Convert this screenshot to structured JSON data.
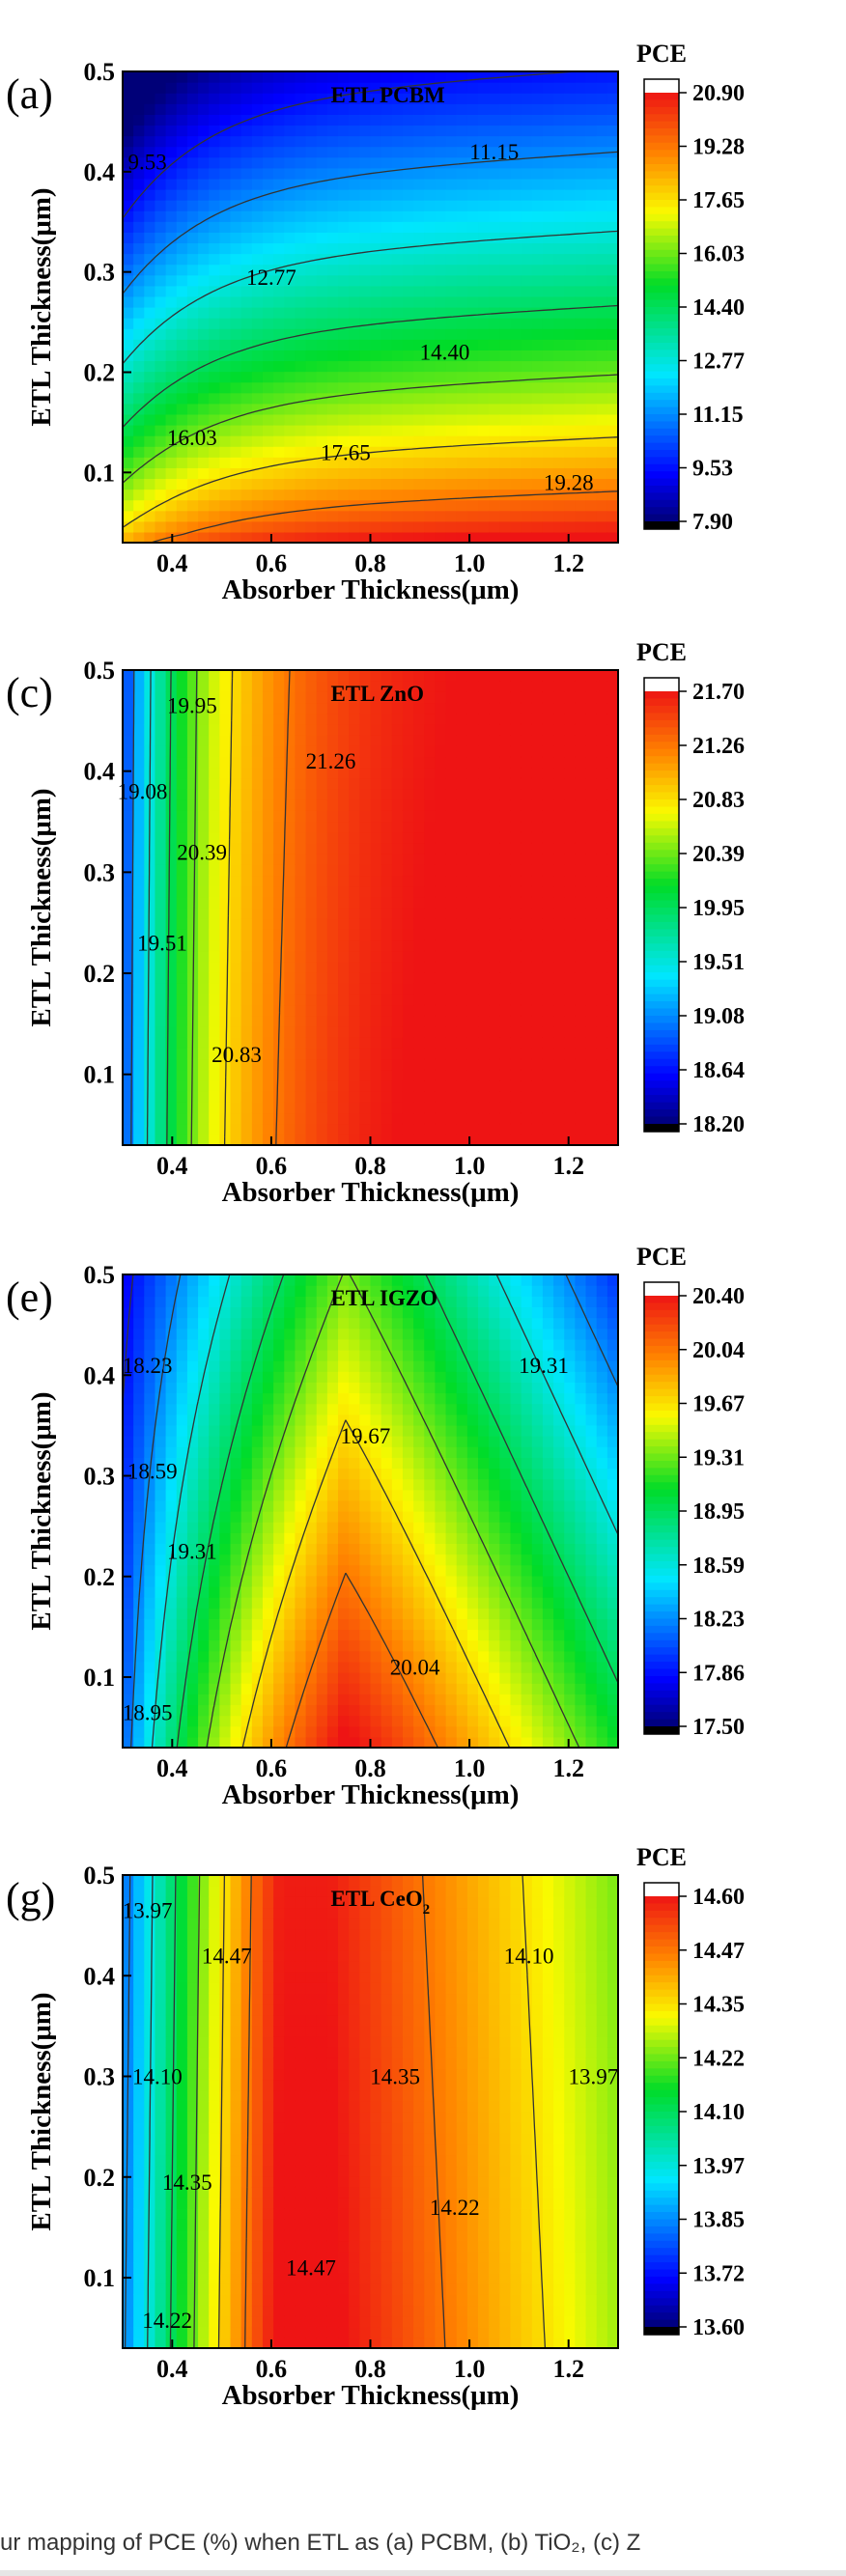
{
  "caption": "ur mapping of PCE (%) when ETL as (a) PCBM, (b) TiO₂, (c) Z",
  "chart_data": [
    {
      "type": "heatmap",
      "panel": "(a)",
      "title": "ETL PCBM",
      "title_sub": "",
      "xlabel": "Absorber Thickness(μm)",
      "ylabel": "ETL Thickness(μm)",
      "colorbar_title": "PCE",
      "xlim": [
        0.3,
        1.3
      ],
      "ylim": [
        0.03,
        0.5
      ],
      "xticks": [
        "0.4",
        "0.6",
        "0.8",
        "1.0",
        "1.2"
      ],
      "yticks": [
        "0.1",
        "0.2",
        "0.3",
        "0.4",
        "0.5"
      ],
      "zlim": [
        7.9,
        20.9
      ],
      "colorbar_ticks": [
        "20.90",
        "19.28",
        "17.65",
        "16.03",
        "14.40",
        "12.77",
        "11.15",
        "9.53",
        "7.90"
      ],
      "contour_labels": [
        {
          "text": "9.53",
          "x": 0.35,
          "y": 0.41
        },
        {
          "text": "11.15",
          "x": 1.05,
          "y": 0.42
        },
        {
          "text": "12.77",
          "x": 0.6,
          "y": 0.295
        },
        {
          "text": "14.40",
          "x": 0.95,
          "y": 0.22
        },
        {
          "text": "16.03",
          "x": 0.44,
          "y": 0.135
        },
        {
          "text": "17.65",
          "x": 0.75,
          "y": 0.12
        },
        {
          "text": "19.28",
          "x": 1.2,
          "y": 0.09
        }
      ]
    },
    {
      "type": "heatmap",
      "panel": "(c)",
      "title": "ETL ZnO",
      "title_sub": "",
      "xlabel": "Absorber Thickness(μm)",
      "ylabel": "ETL Thickness(μm)",
      "colorbar_title": "PCE",
      "xlim": [
        0.3,
        1.3
      ],
      "ylim": [
        0.03,
        0.5
      ],
      "xticks": [
        "0.4",
        "0.6",
        "0.8",
        "1.0",
        "1.2"
      ],
      "yticks": [
        "0.1",
        "0.2",
        "0.3",
        "0.4",
        "0.5"
      ],
      "zlim": [
        18.2,
        21.7
      ],
      "colorbar_ticks": [
        "21.70",
        "21.26",
        "20.83",
        "20.39",
        "19.95",
        "19.51",
        "19.08",
        "18.64",
        "18.20"
      ],
      "contour_labels": [
        {
          "text": "19.95",
          "x": 0.44,
          "y": 0.465
        },
        {
          "text": "21.26",
          "x": 0.72,
          "y": 0.41
        },
        {
          "text": "19.08",
          "x": 0.34,
          "y": 0.38
        },
        {
          "text": "20.39",
          "x": 0.46,
          "y": 0.32
        },
        {
          "text": "19.51",
          "x": 0.38,
          "y": 0.23
        },
        {
          "text": "20.83",
          "x": 0.53,
          "y": 0.12
        }
      ]
    },
    {
      "type": "heatmap",
      "panel": "(e)",
      "title": "ETL IGZO",
      "title_sub": "",
      "xlabel": "Absorber Thickness(μm)",
      "ylabel": "ETL Thickness(μm)",
      "colorbar_title": "PCE",
      "xlim": [
        0.3,
        1.3
      ],
      "ylim": [
        0.03,
        0.5
      ],
      "xticks": [
        "0.4",
        "0.6",
        "0.8",
        "1.0",
        "1.2"
      ],
      "yticks": [
        "0.1",
        "0.2",
        "0.3",
        "0.4",
        "0.5"
      ],
      "zlim": [
        17.5,
        20.4
      ],
      "colorbar_ticks": [
        "20.40",
        "20.04",
        "19.67",
        "19.31",
        "18.95",
        "18.59",
        "18.23",
        "17.86",
        "17.50"
      ],
      "contour_labels": [
        {
          "text": "18.23",
          "x": 0.35,
          "y": 0.41
        },
        {
          "text": "19.31",
          "x": 1.15,
          "y": 0.41
        },
        {
          "text": "19.67",
          "x": 0.79,
          "y": 0.34
        },
        {
          "text": "18.59",
          "x": 0.36,
          "y": 0.305
        },
        {
          "text": "19.31",
          "x": 0.44,
          "y": 0.225
        },
        {
          "text": "20.04",
          "x": 0.89,
          "y": 0.11
        },
        {
          "text": "18.95",
          "x": 0.35,
          "y": 0.065
        }
      ]
    },
    {
      "type": "heatmap",
      "panel": "(g)",
      "title": "ETL CeO",
      "title_sub": "2",
      "xlabel": "Absorber Thickness(μm)",
      "ylabel": "ETL Thickness(μm)",
      "colorbar_title": "PCE",
      "xlim": [
        0.3,
        1.3
      ],
      "ylim": [
        0.03,
        0.5
      ],
      "xticks": [
        "0.4",
        "0.6",
        "0.8",
        "1.0",
        "1.2"
      ],
      "yticks": [
        "0.1",
        "0.2",
        "0.3",
        "0.4",
        "0.5"
      ],
      "zlim": [
        13.6,
        14.6
      ],
      "colorbar_ticks": [
        "14.60",
        "14.47",
        "14.35",
        "14.22",
        "14.10",
        "13.97",
        "13.85",
        "13.72",
        "13.60"
      ],
      "contour_labels": [
        {
          "text": "13.97",
          "x": 0.35,
          "y": 0.465
        },
        {
          "text": "14.47",
          "x": 0.51,
          "y": 0.42
        },
        {
          "text": "14.10",
          "x": 1.12,
          "y": 0.42
        },
        {
          "text": "14.10",
          "x": 0.37,
          "y": 0.3
        },
        {
          "text": "14.35",
          "x": 0.85,
          "y": 0.3
        },
        {
          "text": "13.97",
          "x": 1.25,
          "y": 0.3
        },
        {
          "text": "14.35",
          "x": 0.43,
          "y": 0.195
        },
        {
          "text": "14.22",
          "x": 0.97,
          "y": 0.17
        },
        {
          "text": "14.47",
          "x": 0.68,
          "y": 0.11
        },
        {
          "text": "14.22",
          "x": 0.39,
          "y": 0.058
        }
      ]
    }
  ]
}
